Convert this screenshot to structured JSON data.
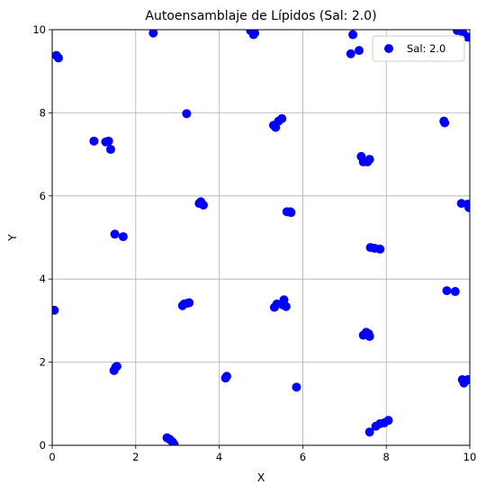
{
  "chart_data": {
    "type": "scatter",
    "title": "Autoensamblaje de Lípidos (Sal: 2.0)",
    "xlabel": "X",
    "ylabel": "Y",
    "xlim": [
      0,
      10
    ],
    "ylim": [
      0,
      10
    ],
    "xticks": [
      "0",
      "2",
      "4",
      "6",
      "8",
      "10"
    ],
    "yticks": [
      "0",
      "2",
      "4",
      "6",
      "8",
      "10"
    ],
    "grid": true,
    "legend_position": "top-right",
    "series": [
      {
        "name": "Sal: 2.0",
        "color": "#0000ff",
        "points": [
          [
            0.1,
            9.38
          ],
          [
            0.15,
            9.32
          ],
          [
            2.42,
            9.92
          ],
          [
            4.75,
            9.98
          ],
          [
            4.82,
            9.88
          ],
          [
            4.85,
            9.92
          ],
          [
            7.15,
            9.42
          ],
          [
            7.2,
            9.88
          ],
          [
            7.35,
            9.5
          ],
          [
            9.7,
            9.98
          ],
          [
            9.85,
            9.9
          ],
          [
            9.95,
            9.82
          ],
          [
            3.22,
            7.98
          ],
          [
            1.0,
            7.32
          ],
          [
            1.28,
            7.3
          ],
          [
            1.35,
            7.32
          ],
          [
            1.4,
            7.12
          ],
          [
            5.3,
            7.7
          ],
          [
            5.35,
            7.65
          ],
          [
            5.42,
            7.8
          ],
          [
            5.5,
            7.86
          ],
          [
            9.38,
            7.8
          ],
          [
            9.4,
            7.76
          ],
          [
            7.4,
            6.95
          ],
          [
            7.45,
            6.82
          ],
          [
            7.55,
            6.82
          ],
          [
            7.6,
            6.88
          ],
          [
            3.52,
            5.82
          ],
          [
            3.56,
            5.86
          ],
          [
            3.62,
            5.78
          ],
          [
            5.62,
            5.62
          ],
          [
            5.7,
            5.62
          ],
          [
            5.72,
            5.6
          ],
          [
            9.8,
            5.82
          ],
          [
            9.95,
            5.8
          ],
          [
            9.98,
            5.72
          ],
          [
            1.5,
            5.08
          ],
          [
            1.7,
            5.02
          ],
          [
            7.62,
            4.76
          ],
          [
            7.72,
            4.74
          ],
          [
            7.85,
            4.72
          ],
          [
            0.05,
            3.25
          ],
          [
            3.12,
            3.36
          ],
          [
            3.16,
            3.4
          ],
          [
            3.24,
            3.42
          ],
          [
            3.28,
            3.43
          ],
          [
            5.32,
            3.32
          ],
          [
            5.38,
            3.4
          ],
          [
            5.52,
            3.38
          ],
          [
            5.55,
            3.5
          ],
          [
            5.6,
            3.34
          ],
          [
            9.45,
            3.72
          ],
          [
            9.65,
            3.7
          ],
          [
            7.45,
            2.65
          ],
          [
            7.52,
            2.72
          ],
          [
            7.58,
            2.68
          ],
          [
            7.6,
            2.62
          ],
          [
            1.48,
            1.8
          ],
          [
            1.52,
            1.88
          ],
          [
            1.55,
            1.9
          ],
          [
            4.15,
            1.62
          ],
          [
            4.18,
            1.66
          ],
          [
            5.85,
            1.4
          ],
          [
            9.82,
            1.58
          ],
          [
            9.86,
            1.5
          ],
          [
            9.95,
            1.58
          ],
          [
            2.75,
            0.18
          ],
          [
            2.82,
            0.14
          ],
          [
            2.88,
            0.08
          ],
          [
            2.92,
            0.02
          ],
          [
            7.6,
            0.32
          ],
          [
            7.75,
            0.46
          ],
          [
            7.85,
            0.52
          ],
          [
            7.95,
            0.54
          ],
          [
            8.05,
            0.6
          ]
        ]
      }
    ]
  }
}
